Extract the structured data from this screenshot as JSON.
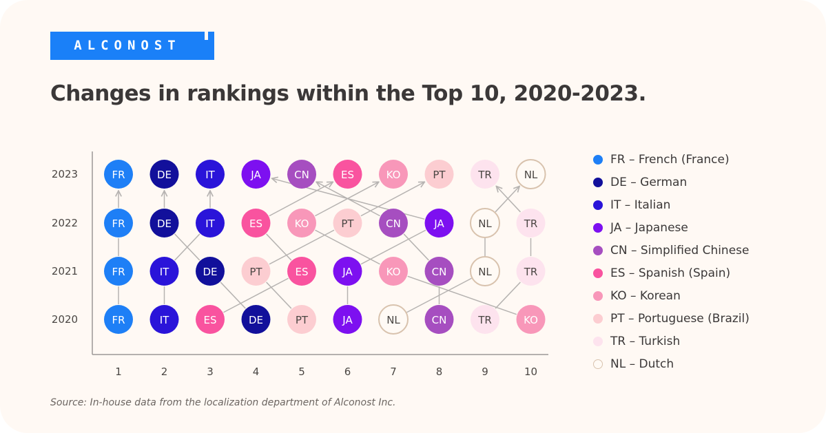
{
  "logo_text": "ALCONOST",
  "title": "Changes in rankings within the Top 10, 2020-2023.",
  "source": "Source: In-house data from the localization department of Alconost Inc.",
  "colors": {
    "FR": "#1e7ff6",
    "DE": "#12109b",
    "IT": "#2a14d9",
    "JA": "#7d10f0",
    "CN": "#a64ec0",
    "ES": "#f9539f",
    "KO": "#f897b9",
    "PT": "#fccdd1",
    "TR": "#fde3ee",
    "NL": "#fffaf5"
  },
  "legend": [
    {
      "code": "FR",
      "label": "FR – French (France)"
    },
    {
      "code": "DE",
      "label": "DE – German"
    },
    {
      "code": "IT",
      "label": "IT – Italian"
    },
    {
      "code": "JA",
      "label": "JA – Japanese"
    },
    {
      "code": "CN",
      "label": "CN – Simplified Chinese"
    },
    {
      "code": "ES",
      "label": "ES – Spanish (Spain)"
    },
    {
      "code": "KO",
      "label": "KO – Korean"
    },
    {
      "code": "PT",
      "label": "PT – Portuguese (Brazil)"
    },
    {
      "code": "TR",
      "label": "TR – Turkish"
    },
    {
      "code": "NL",
      "label": "NL – Dutch"
    }
  ],
  "chart_data": {
    "type": "scatter",
    "x": [
      1,
      2,
      3,
      4,
      5,
      6,
      7,
      8,
      9,
      10
    ],
    "years": [
      "2020",
      "2021",
      "2022",
      "2023"
    ],
    "rankings": {
      "2020": [
        "FR",
        "IT",
        "ES",
        "DE",
        "PT",
        "JA",
        "NL",
        "CN",
        "TR",
        "KO"
      ],
      "2021": [
        "FR",
        "IT",
        "DE",
        "PT",
        "ES",
        "JA",
        "KO",
        "CN",
        "NL",
        "TR"
      ],
      "2022": [
        "FR",
        "DE",
        "IT",
        "ES",
        "KO",
        "PT",
        "CN",
        "JA",
        "NL",
        "TR"
      ],
      "2023": [
        "FR",
        "DE",
        "IT",
        "JA",
        "CN",
        "ES",
        "KO",
        "PT",
        "TR",
        "NL"
      ]
    }
  }
}
